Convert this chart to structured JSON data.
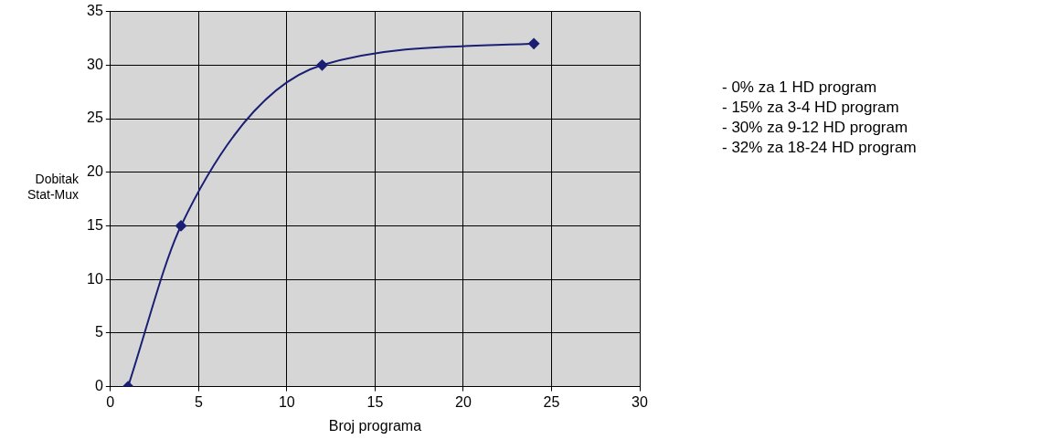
{
  "chart_data": {
    "type": "line",
    "xlabel": "Broj programa",
    "ylabel": "Dobitak Stat-Mux",
    "x": [
      1,
      4,
      12,
      24
    ],
    "values": [
      0,
      15,
      30,
      32
    ],
    "color": "#1a1f73",
    "marker": "diamond",
    "line_style": "solid",
    "grid": true,
    "legend": false,
    "xlim": [
      0,
      30
    ],
    "xticks": [
      0,
      5,
      10,
      15,
      20,
      25,
      30
    ],
    "ylim": [
      0,
      35
    ],
    "yticks": [
      0,
      5,
      10,
      15,
      20,
      25,
      30,
      35
    ],
    "annotations": [
      "- 0% za 1 HD program",
      "- 15% za 3-4 HD program",
      "- 30% za 9-12 HD program",
      "- 32% za 18-24 HD program"
    ]
  }
}
